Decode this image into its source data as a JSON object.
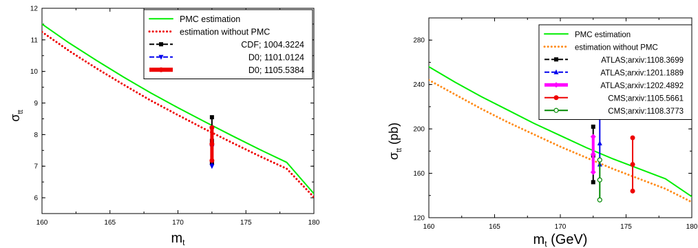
{
  "chart_data": [
    {
      "type": "line",
      "title": "",
      "xlabel": "m",
      "xlabel_sub": "t",
      "ylabel": "σ",
      "ylabel_sub": "tt",
      "xlim": [
        160,
        180
      ],
      "ylim": [
        5.5,
        12
      ],
      "xticks": [
        "160",
        "165",
        "170",
        "175",
        "180"
      ],
      "yticks": [
        "6",
        "7",
        "8",
        "9",
        "10",
        "11",
        "12"
      ],
      "legend_position": "top-right",
      "series": [
        {
          "name": "PMC estimation",
          "color": "#00ee00",
          "style": "solid",
          "x": [
            160,
            162,
            164,
            166,
            168,
            170,
            172,
            174,
            176,
            178,
            180
          ],
          "y": [
            11.5,
            10.9,
            10.35,
            9.82,
            9.32,
            8.85,
            8.4,
            7.96,
            7.53,
            7.12,
            6.13
          ]
        },
        {
          "name": "estimation without PMC",
          "color": "#ee0000",
          "style": "dotted",
          "x": [
            160,
            162,
            164,
            166,
            168,
            170,
            172,
            174,
            176,
            178,
            180
          ],
          "y": [
            11.25,
            10.65,
            10.1,
            9.58,
            9.08,
            8.62,
            8.17,
            7.74,
            7.32,
            6.92,
            6.02
          ]
        },
        {
          "name": "CDF; 1004.3224",
          "color": "#000000",
          "marker": "square",
          "x": [
            172.5,
            172.5,
            172.5
          ],
          "y": [
            7.1,
            7.8,
            8.55
          ]
        },
        {
          "name": "D0; 1101.0124",
          "color": "#0000ee",
          "marker": "triangle-down",
          "x": [
            172.5,
            172.5,
            172.5
          ],
          "y": [
            7.0,
            7.6,
            8.2
          ]
        },
        {
          "name": "D0; 1105.5384",
          "color": "#ee0000",
          "marker": "circle",
          "x": [
            172.5,
            172.5,
            172.5
          ],
          "y": [
            7.18,
            7.7,
            8.22
          ]
        }
      ]
    },
    {
      "type": "line",
      "title": "",
      "xlabel": "m",
      "xlabel_sub": "t",
      "xlabel_unit": " (GeV)",
      "ylabel": "σ",
      "ylabel_sub": "tt",
      "ylabel_unit": " (pb)",
      "xlim": [
        160,
        180
      ],
      "ylim": [
        120,
        300
      ],
      "xticks": [
        "160",
        "165",
        "170",
        "175",
        "180"
      ],
      "yticks": [
        "120",
        "160",
        "200",
        "240",
        "280"
      ],
      "legend_position": "top-right",
      "series": [
        {
          "name": "PMC estimation",
          "color": "#00ee00",
          "style": "solid",
          "x": [
            160,
            162,
            164,
            166,
            168,
            170,
            172,
            174,
            176,
            178,
            180
          ],
          "y": [
            256,
            242,
            229,
            217,
            205,
            194,
            183,
            173,
            164,
            155,
            139
          ]
        },
        {
          "name": "estimation without PMC",
          "color": "#ff8c1a",
          "style": "dotted",
          "x": [
            160,
            162,
            164,
            166,
            168,
            170,
            172,
            174,
            176,
            178,
            180
          ],
          "y": [
            244,
            231,
            218,
            206,
            195,
            184,
            174,
            164,
            155,
            146,
            134
          ]
        },
        {
          "name": "ATLAS;arxiv:1108.3699",
          "color": "#000000",
          "marker": "square",
          "x": [
            172.5,
            172.5,
            172.5
          ],
          "y": [
            152,
            176,
            202
          ]
        },
        {
          "name": "ATLAS;arxiv:1201.1889",
          "color": "#0000ee",
          "marker": "triangle-up",
          "x": [
            173.0,
            173.0,
            173.0
          ],
          "y": [
            168,
            187,
            210
          ]
        },
        {
          "name": "ATLAS;arxiv:1202.4892",
          "color": "#ff00ff",
          "marker": "diamond",
          "x": [
            172.5,
            172.5,
            172.5
          ],
          "y": [
            161,
            177,
            193
          ]
        },
        {
          "name": "CMS;arxiv:1105.5661",
          "color": "#ee0000",
          "marker": "circle",
          "x": [
            175.5,
            175.5,
            175.5
          ],
          "y": [
            144,
            168,
            192
          ]
        },
        {
          "name": "CMS;arxiv:1108.3773",
          "color": "#008800",
          "marker": "open-circle",
          "x": [
            173.0,
            173.0,
            173.0
          ],
          "y": [
            136,
            154,
            172
          ]
        }
      ]
    }
  ]
}
